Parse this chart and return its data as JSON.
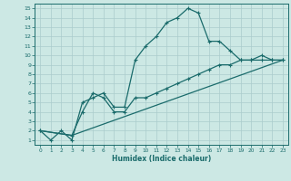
{
  "xlabel": "Humidex (Indice chaleur)",
  "bg_color": "#cce8e4",
  "grid_color": "#aacccc",
  "line_color": "#1a6b6b",
  "xlim": [
    -0.5,
    23.5
  ],
  "ylim": [
    0.5,
    15.5
  ],
  "xticks": [
    0,
    1,
    2,
    3,
    4,
    5,
    6,
    7,
    8,
    9,
    10,
    11,
    12,
    13,
    14,
    15,
    16,
    17,
    18,
    19,
    20,
    21,
    22,
    23
  ],
  "yticks": [
    1,
    2,
    3,
    4,
    5,
    6,
    7,
    8,
    9,
    10,
    11,
    12,
    13,
    14,
    15
  ],
  "line1_x": [
    0,
    1,
    2,
    3,
    4,
    5,
    6,
    7,
    8,
    9,
    10,
    11,
    12,
    13,
    14,
    15,
    16,
    17,
    18,
    19,
    20,
    21,
    22,
    23
  ],
  "line1_y": [
    2,
    1,
    2,
    1,
    5,
    5.5,
    6,
    4.5,
    4.5,
    9.5,
    11,
    12,
    13.5,
    14,
    15,
    14.5,
    11.5,
    11.5,
    10.5,
    9.5,
    9.5,
    10,
    9.5,
    9.5
  ],
  "line2_x": [
    0,
    3,
    4,
    5,
    6,
    7,
    8,
    9,
    10,
    11,
    12,
    13,
    14,
    15,
    16,
    17,
    18,
    19,
    20,
    21,
    22,
    23
  ],
  "line2_y": [
    2,
    1.5,
    4,
    6,
    5.5,
    4,
    4,
    5.5,
    5.5,
    6,
    6.5,
    7,
    7.5,
    8,
    8.5,
    9,
    9,
    9.5,
    9.5,
    9.5,
    9.5,
    9.5
  ],
  "line3_x": [
    0,
    3,
    23
  ],
  "line3_y": [
    2,
    1.5,
    9.5
  ]
}
